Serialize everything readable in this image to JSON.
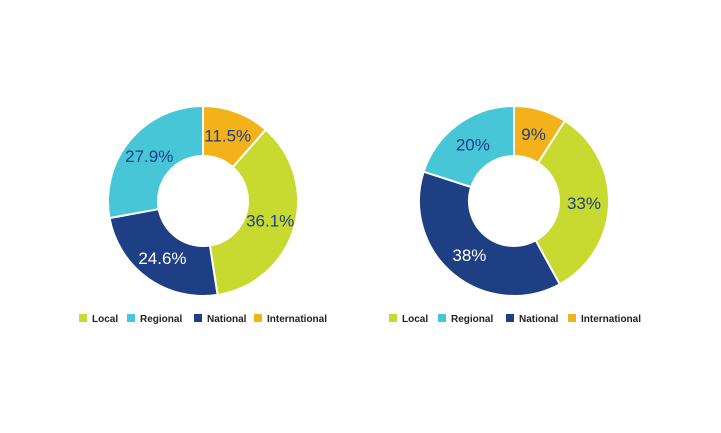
{
  "colors": {
    "Local": "#c8d92f",
    "Regional": "#47c6d8",
    "National": "#1e3f83",
    "International": "#f4b21a",
    "label_dark": "#1e3f83",
    "label_light": "#ffffff"
  },
  "chart_data": [
    {
      "type": "pie",
      "donut": true,
      "title": "",
      "start_angle_deg": 0,
      "direction": "clockwise",
      "legend_position": "bottom",
      "categories": [
        "Local",
        "Regional",
        "National",
        "International"
      ],
      "slices": [
        {
          "name": "International",
          "value": 11.5,
          "label": "11.5%"
        },
        {
          "name": "Local",
          "value": 36.1,
          "label": "36.1%"
        },
        {
          "name": "National",
          "value": 24.6,
          "label": "24.6%"
        },
        {
          "name": "Regional",
          "value": 27.9,
          "label": "27.9%"
        }
      ]
    },
    {
      "type": "pie",
      "donut": true,
      "title": "",
      "start_angle_deg": 0,
      "direction": "clockwise",
      "legend_position": "bottom",
      "categories": [
        "Local",
        "Regional",
        "National",
        "International"
      ],
      "slices": [
        {
          "name": "International",
          "value": 9,
          "label": "9%"
        },
        {
          "name": "Local",
          "value": 33,
          "label": "33%"
        },
        {
          "name": "National",
          "value": 38,
          "label": "38%"
        },
        {
          "name": "Regional",
          "value": 20,
          "label": "20%"
        }
      ]
    }
  ]
}
